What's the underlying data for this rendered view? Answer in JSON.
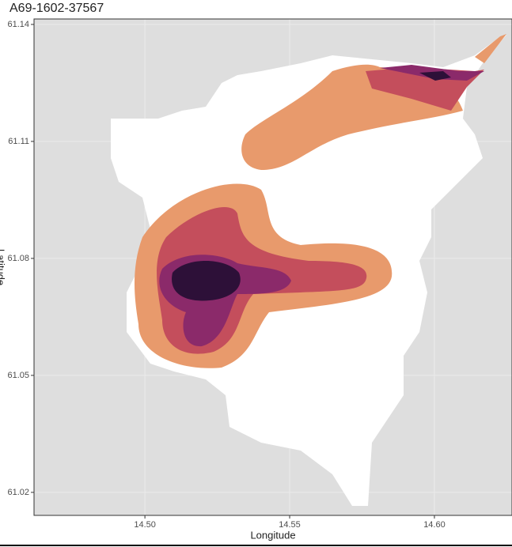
{
  "chart_data": {
    "type": "density-map",
    "title": "A69-1602-37567",
    "xlabel": "Longitude",
    "ylabel": "Latitude",
    "xlim": [
      14.4617,
      14.6268
    ],
    "ylim": [
      61.0141,
      61.1414
    ],
    "xticks": [
      {
        "value": 14.5,
        "label": "14.50"
      },
      {
        "value": 14.55,
        "label": "14.55"
      },
      {
        "value": 14.6,
        "label": "14.60"
      }
    ],
    "yticks": [
      61.02,
      61.05,
      61.08,
      61.11,
      61.14
    ],
    "grid": true
  }
}
